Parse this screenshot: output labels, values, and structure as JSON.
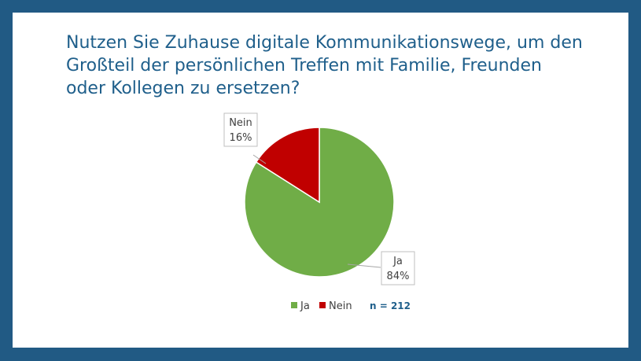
{
  "slide": {
    "title": "Nutzen Sie Zuhause digitale Kommunikationswege, um den Großteil der persönlichen Treffen mit Familie, Freunden oder Kollegen zu ersetzen?",
    "sample_note": "n = 212"
  },
  "colors": {
    "frame": "#215A84",
    "title": "#1F5F8B",
    "ja": "#70AD47",
    "nein": "#C00000"
  },
  "chart_data": {
    "type": "pie",
    "title": "Nutzen Sie Zuhause digitale Kommunikationswege, um den Großteil der persönlichen Treffen mit Familie, Freunden oder Kollegen zu ersetzen?",
    "categories": [
      "Ja",
      "Nein"
    ],
    "values": [
      84,
      16
    ],
    "value_labels": [
      "84%",
      "16%"
    ],
    "colors": [
      "#70AD47",
      "#C00000"
    ],
    "legend": {
      "position": "bottom",
      "entries": [
        "Ja",
        "Nein"
      ]
    },
    "n": "n = 212"
  }
}
